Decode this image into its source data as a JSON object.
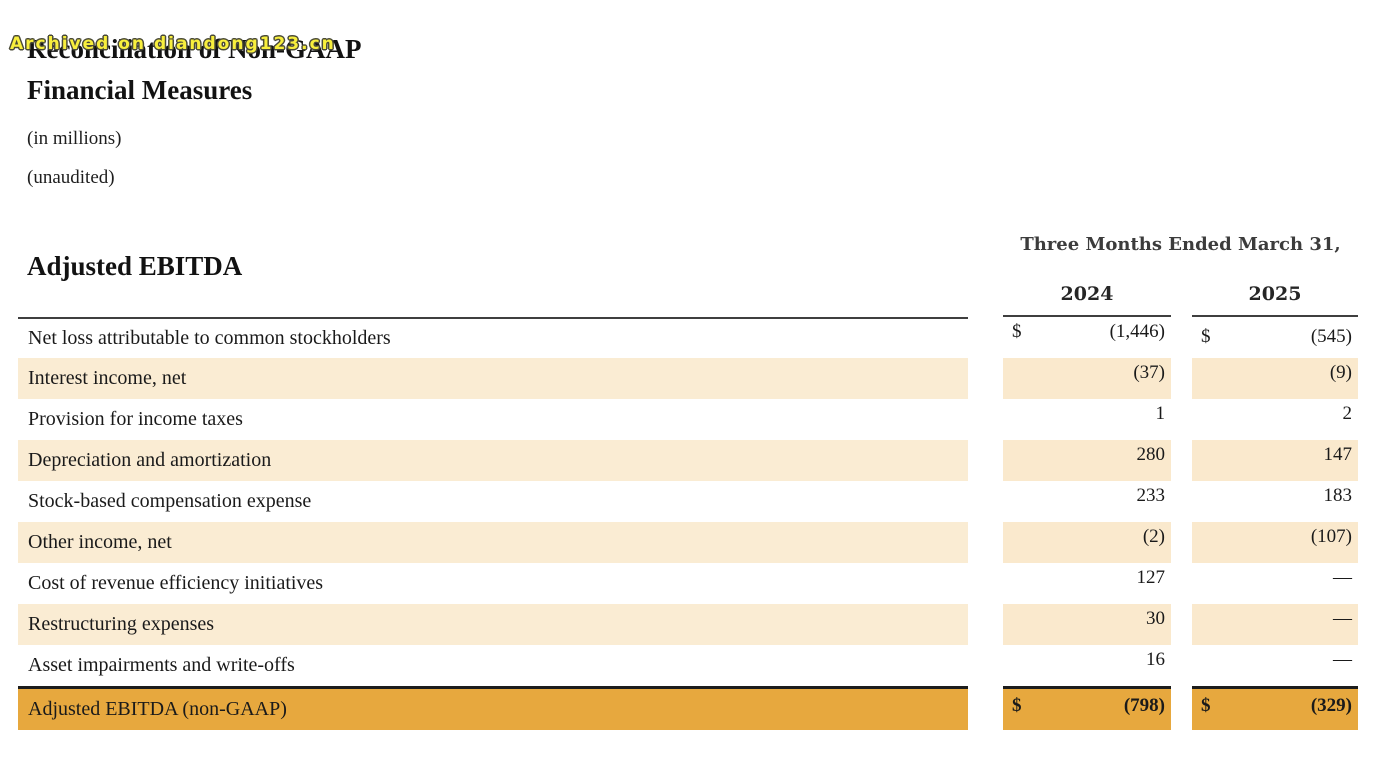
{
  "watermark": "Archived on diandong123.cn",
  "title": {
    "line1": "Reconciliation of Non-GAAP",
    "line2": "Financial Measures",
    "note1": "(in millions)",
    "note2": "(unaudited)"
  },
  "table": {
    "section_title": "Adjusted EBITDA",
    "period_header": "Three Months Ended March 31,",
    "columns": [
      "2024",
      "2025"
    ],
    "rows": [
      {
        "label": "Net loss attributable to common stockholders",
        "currency": "$",
        "values": [
          "(1,446)",
          "(545)"
        ]
      },
      {
        "label": "Interest income, net",
        "values": [
          "(37)",
          "(9)"
        ]
      },
      {
        "label": "Provision for income taxes",
        "values": [
          "1",
          "2"
        ]
      },
      {
        "label": "Depreciation and amortization",
        "values": [
          "280",
          "147"
        ]
      },
      {
        "label": "Stock-based compensation expense",
        "values": [
          "233",
          "183"
        ]
      },
      {
        "label": "Other income, net",
        "values": [
          "(2)",
          "(107)"
        ]
      },
      {
        "label": "Cost of revenue efficiency initiatives",
        "values": [
          "127",
          "—"
        ]
      },
      {
        "label": "Restructuring expenses",
        "values": [
          "30",
          "—"
        ]
      },
      {
        "label": "Asset impairments and write-offs",
        "values": [
          "16",
          "—"
        ]
      },
      {
        "label": "Adjusted EBITDA (non-GAAP)",
        "currency": "$",
        "values": [
          "(798)",
          "(329)"
        ]
      }
    ]
  },
  "colors": {
    "stripe-label": "#faecd3",
    "stripe-value": "#fae9cd",
    "total": "#e7a83e",
    "watermark-fill": "#f8ef3d",
    "watermark-outline": "#4a4a38"
  }
}
